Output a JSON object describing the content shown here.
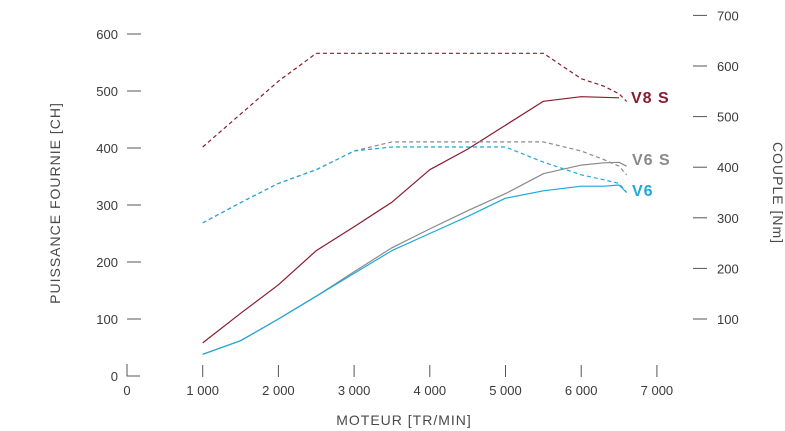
{
  "chart_data": {
    "type": "line",
    "xlabel": "MOTEUR [TR/MIN]",
    "ylabel_left": "PUISSANCE FOURNIE [CH]",
    "ylabel_right": "COUPLE [Nm]",
    "x_ticks": [
      0,
      1000,
      2000,
      3000,
      4000,
      5000,
      6000,
      7000
    ],
    "x_tick_labels": [
      "0",
      "1 000",
      "2 000",
      "3 000",
      "4 000",
      "5 000",
      "6 000",
      "7 000"
    ],
    "y_left_ticks": [
      0,
      100,
      200,
      300,
      400,
      500,
      600
    ],
    "y_left_tick_labels": [
      "0",
      "100",
      "200",
      "300",
      "400",
      "500",
      "600"
    ],
    "y_right_ticks": [
      100,
      200,
      300,
      400,
      500,
      600,
      700
    ],
    "y_right_tick_labels": [
      "100",
      "200",
      "300",
      "400",
      "500",
      "600",
      "700"
    ],
    "xlim": [
      0,
      7000
    ],
    "ylim_left": [
      0,
      600
    ],
    "ylim_right": [
      100,
      700
    ],
    "grid": false,
    "series": [
      {
        "name": "V8 S",
        "color": "#8b1a2e",
        "power": {
          "x": [
            1000,
            1500,
            2000,
            2500,
            3000,
            3500,
            4000,
            4500,
            5000,
            5500,
            6000,
            6500
          ],
          "y": [
            58,
            110,
            160,
            220,
            262,
            305,
            362,
            398,
            440,
            482,
            490,
            488
          ]
        },
        "torque": {
          "x": [
            1000,
            1500,
            2000,
            2500,
            3000,
            3500,
            4000,
            4500,
            5000,
            5500,
            6000,
            6300,
            6500,
            6600
          ],
          "y": [
            440,
            505,
            570,
            625,
            625,
            625,
            625,
            625,
            625,
            625,
            575,
            560,
            545,
            530
          ]
        }
      },
      {
        "name": "V6 S",
        "color": "#8a8a8a",
        "power": {
          "x": [
            1000,
            1500,
            2000,
            2500,
            3000,
            3500,
            4000,
            4500,
            5000,
            5500,
            6000,
            6300,
            6500,
            6600
          ],
          "y": [
            38,
            62,
            100,
            140,
            183,
            225,
            258,
            290,
            320,
            355,
            370,
            374,
            375,
            368
          ]
        },
        "torque": {
          "x": [
            1000,
            1500,
            2000,
            2500,
            3000,
            3500,
            4000,
            4500,
            5000,
            5500,
            6000,
            6300,
            6500,
            6600
          ],
          "y": [
            290,
            330,
            368,
            395,
            432,
            450,
            450,
            450,
            450,
            450,
            432,
            415,
            402,
            385
          ]
        }
      },
      {
        "name": "V6",
        "color": "#1ea8dc",
        "power": {
          "x": [
            1000,
            1500,
            2000,
            2500,
            3000,
            3500,
            4000,
            4500,
            5000,
            5500,
            6000,
            6300,
            6500,
            6600
          ],
          "y": [
            38,
            62,
            100,
            140,
            180,
            220,
            250,
            280,
            312,
            325,
            333,
            333,
            335,
            322
          ]
        },
        "torque": {
          "x": [
            1000,
            1500,
            2000,
            2500,
            3000,
            3500,
            4000,
            4500,
            5000,
            5500,
            6000,
            6300,
            6500,
            6600
          ],
          "y": [
            290,
            330,
            368,
            395,
            432,
            440,
            440,
            440,
            440,
            410,
            385,
            375,
            368,
            350
          ]
        }
      }
    ]
  }
}
